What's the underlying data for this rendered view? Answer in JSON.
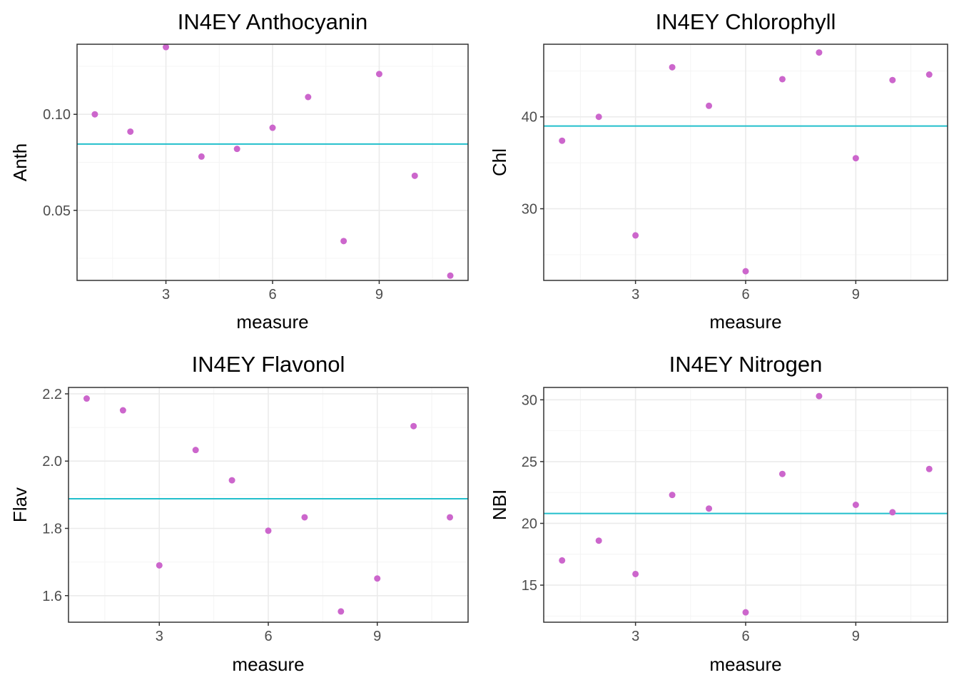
{
  "colors": {
    "point": "#cc66cc",
    "hline": "#22bfcc",
    "grid_major": "#ebebeb",
    "grid_minor": "#f4f4f4",
    "panel_border": "#333333"
  },
  "chart_data": [
    {
      "type": "scatter",
      "title": "IN4EY Anthocyanin",
      "xlabel": "measure",
      "ylabel": "Anth",
      "xlim": [
        0.5,
        11.5
      ],
      "ylim": [
        0.0135,
        0.1365
      ],
      "x_ticks": [
        3,
        6,
        9
      ],
      "x_tick_labels": [
        "3",
        "6",
        "9"
      ],
      "y_ticks": [
        0.05,
        0.1
      ],
      "y_tick_labels": [
        "0.05",
        "0.10"
      ],
      "x": [
        1,
        2,
        3,
        4,
        5,
        6,
        7,
        8,
        9,
        10,
        11
      ],
      "y": [
        0.1,
        0.091,
        0.135,
        0.078,
        0.082,
        0.093,
        0.109,
        0.034,
        0.121,
        0.068,
        0.016
      ],
      "hline": 0.0845,
      "grid": true
    },
    {
      "type": "scatter",
      "title": "IN4EY Chlorophyll",
      "xlabel": "measure",
      "ylabel": "Chl",
      "xlim": [
        0.5,
        11.5
      ],
      "ylim": [
        22.2,
        47.9
      ],
      "x_ticks": [
        3,
        6,
        9
      ],
      "x_tick_labels": [
        "3",
        "6",
        "9"
      ],
      "y_ticks": [
        30,
        40
      ],
      "y_tick_labels": [
        "30",
        "40"
      ],
      "x": [
        1,
        2,
        3,
        4,
        5,
        6,
        7,
        8,
        9,
        10,
        11
      ],
      "y": [
        37.4,
        40.0,
        27.1,
        45.4,
        41.2,
        23.2,
        44.1,
        47.0,
        35.5,
        44.0,
        44.6
      ],
      "hline": 39.0,
      "grid": true
    },
    {
      "type": "scatter",
      "title": "IN4EY Flavonol",
      "xlabel": "measure",
      "ylabel": "Flav",
      "xlim": [
        0.5,
        11.5
      ],
      "ylim": [
        1.521,
        2.219
      ],
      "x_ticks": [
        3,
        6,
        9
      ],
      "x_tick_labels": [
        "3",
        "6",
        "9"
      ],
      "y_ticks": [
        1.6,
        1.8,
        2.0,
        2.2
      ],
      "y_tick_labels": [
        "1.6",
        "1.8",
        "2.0",
        "2.2"
      ],
      "x": [
        1,
        2,
        3,
        4,
        5,
        6,
        7,
        8,
        9,
        10,
        11
      ],
      "y": [
        2.186,
        2.151,
        1.69,
        2.033,
        1.943,
        1.793,
        1.833,
        1.553,
        1.651,
        2.104,
        1.833
      ],
      "hline": 1.888,
      "grid": true
    },
    {
      "type": "scatter",
      "title": "IN4EY Nitrogen",
      "xlabel": "measure",
      "ylabel": "NBI",
      "xlim": [
        0.5,
        11.5
      ],
      "ylim": [
        12.0,
        31.0
      ],
      "x_ticks": [
        3,
        6,
        9
      ],
      "x_tick_labels": [
        "3",
        "6",
        "9"
      ],
      "y_ticks": [
        15,
        20,
        25,
        30
      ],
      "y_tick_labels": [
        "15",
        "20",
        "25",
        "30"
      ],
      "x": [
        1,
        2,
        3,
        4,
        5,
        6,
        7,
        8,
        9,
        10,
        11
      ],
      "y": [
        17.0,
        18.6,
        15.9,
        22.3,
        21.2,
        12.8,
        24.0,
        30.3,
        21.5,
        20.9,
        24.4
      ],
      "hline": 20.8,
      "grid": true
    }
  ]
}
